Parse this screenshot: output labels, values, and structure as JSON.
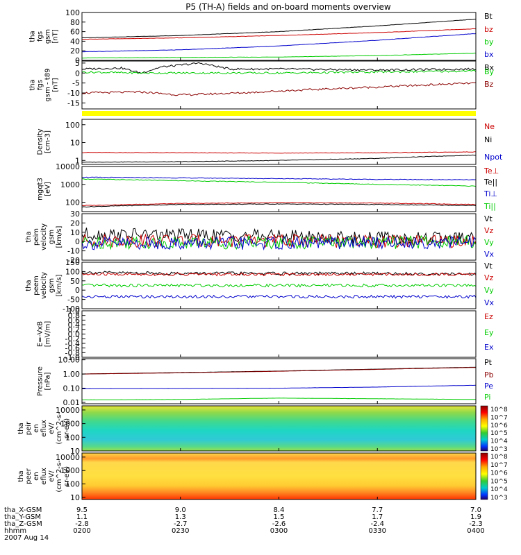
{
  "title": "P5 (TH-A) fields and on-board moments overview",
  "colors": {
    "black": "#000000",
    "red": "#cc0000",
    "darkred": "#8b0000",
    "green": "#00cc00",
    "blue": "#0000cc",
    "yellow": "#ffff00"
  },
  "chart_data": {
    "type": "line",
    "time_labels": [
      "0200",
      "0230",
      "0300",
      "0330",
      "0400"
    ],
    "time_hours": [
      2.0,
      2.5,
      3.0,
      3.5,
      4.0
    ],
    "ephemeris": [
      {
        "name": "tha_X-GSM",
        "values": [
          "9.5",
          "9.0",
          "8.4",
          "7.7",
          "7.0"
        ]
      },
      {
        "name": "tha_Y-GSM",
        "values": [
          "1.1",
          "1.3",
          "1.5",
          "1.7",
          "1.9"
        ]
      },
      {
        "name": "tha_Z-GSM",
        "values": [
          "-2.8",
          "-2.7",
          "-2.6",
          "-2.4",
          "-2.3"
        ]
      },
      {
        "name": "hhmm",
        "values": [
          "0200",
          "0230",
          "0300",
          "0330",
          "0400"
        ]
      }
    ],
    "date": "2007 Aug 14",
    "panels": [
      {
        "key": "fgs_gsm",
        "ylabel": [
          "tha",
          "fgs",
          "gsm",
          "[nT]"
        ],
        "scale": "linear",
        "ylim": [
          0,
          100
        ],
        "ticks": [
          "0",
          "20",
          "40",
          "60",
          "80",
          "100"
        ],
        "legend": [
          "Bt",
          "bz",
          "by",
          "bx"
        ],
        "series": [
          {
            "name": "Bt",
            "color": "#000000",
            "x": [
              2.0,
              2.5,
              3.0,
              3.5,
              4.0
            ],
            "y": [
              47,
              52,
              60,
              72,
              86
            ]
          },
          {
            "name": "bz",
            "color": "#cc0000",
            "x": [
              2.0,
              2.5,
              3.0,
              3.5,
              4.0
            ],
            "y": [
              44,
              47,
              52,
              58,
              66
            ]
          },
          {
            "name": "by",
            "color": "#00cc00",
            "x": [
              2.0,
              2.5,
              3.0,
              3.5,
              4.0
            ],
            "y": [
              5,
              6,
              7,
              10,
              15
            ]
          },
          {
            "name": "bx",
            "color": "#0000cc",
            "x": [
              2.0,
              2.5,
              3.0,
              3.5,
              4.0
            ],
            "y": [
              18,
              22,
              30,
              42,
              56
            ]
          }
        ]
      },
      {
        "key": "fgs_t89",
        "ylabel": [
          "tha",
          "fgs",
          "gsm - t89",
          "[nT]"
        ],
        "scale": "linear",
        "ylim": [
          -18,
          6
        ],
        "ticks": [
          "5",
          "0",
          "-5",
          "-10",
          "-15"
        ],
        "tick_values": [
          5,
          0,
          -5,
          -10,
          -15
        ],
        "legend": [
          "Bx",
          "By",
          "Bz"
        ],
        "series": [
          {
            "name": "Bx",
            "color": "#000000",
            "x": [
              2.0,
              2.2,
              2.3,
              2.4,
              2.6,
              2.75,
              3.0,
              3.5,
              4.0
            ],
            "y": [
              2,
              2.5,
              0,
              3,
              5,
              2,
              2,
              1.5,
              2
            ]
          },
          {
            "name": "By",
            "color": "#00cc00",
            "x": [
              2.0,
              2.3,
              2.5,
              3.0,
              3.5,
              4.0
            ],
            "y": [
              0.5,
              0,
              0,
              0,
              0.5,
              1
            ]
          },
          {
            "name": "Bz",
            "color": "#8b0000",
            "x": [
              2.0,
              2.3,
              2.5,
              2.8,
              3.0,
              3.5,
              4.0
            ],
            "y": [
              -10,
              -9.5,
              -11,
              -10,
              -9,
              -7,
              -5
            ]
          }
        ]
      },
      {
        "key": "density",
        "ylabel": [
          "Density",
          "[cm-3]"
        ],
        "scale": "log",
        "ylim": [
          0.6,
          200
        ],
        "ticks": [
          "1",
          "10",
          "100"
        ],
        "tick_values": [
          1,
          10,
          100
        ],
        "legend": [
          "Ne",
          "Ni",
          "Npot"
        ],
        "series": [
          {
            "name": "Ne",
            "color": "#cc0000",
            "x": [
              2.0,
              2.5,
              3.0,
              3.5,
              4.0
            ],
            "y": [
              2.8,
              2.7,
              2.6,
              2.7,
              3.0
            ]
          },
          {
            "name": "Ni",
            "color": "#000000",
            "x": [
              2.0,
              2.5,
              3.0,
              3.5,
              4.0
            ],
            "y": [
              0.8,
              0.85,
              1.0,
              1.3,
              2.0
            ]
          }
        ]
      },
      {
        "key": "mgqt3",
        "ylabel": [
          "mgqt3",
          "[eV]"
        ],
        "scale": "log",
        "ylim": [
          30,
          10000
        ],
        "ticks": [
          "100",
          "1000",
          "10000"
        ],
        "tick_values": [
          100,
          1000,
          10000
        ],
        "legend": [
          "Te⊥",
          "Te||",
          "Ti⊥",
          "Ti||"
        ],
        "series": [
          {
            "name": "Te⊥",
            "color": "#cc0000",
            "x": [
              2.0,
              2.5,
              3.0,
              3.5,
              4.0
            ],
            "y": [
              65,
              85,
              95,
              90,
              75
            ]
          },
          {
            "name": "Te||",
            "color": "#000000",
            "x": [
              2.0,
              2.5,
              3.0,
              3.5,
              4.0
            ],
            "y": [
              55,
              75,
              80,
              75,
              65
            ]
          },
          {
            "name": "Ti⊥",
            "color": "#0000cc",
            "x": [
              2.0,
              2.5,
              3.0,
              3.5,
              4.0
            ],
            "y": [
              2500,
              2300,
              2100,
              1900,
              1800
            ]
          },
          {
            "name": "Ti||",
            "color": "#00cc00",
            "x": [
              2.0,
              2.5,
              3.0,
              3.5,
              4.0
            ],
            "y": [
              2000,
              1600,
              1300,
              1000,
              800
            ]
          }
        ]
      },
      {
        "key": "peim",
        "ylabel": [
          "tha",
          "peim",
          "velocity",
          "gsm",
          "[km/s]"
        ],
        "scale": "linear",
        "ylim": [
          -20,
          30
        ],
        "ticks": [
          "30",
          "20",
          "10",
          "0",
          "-10",
          "-20"
        ],
        "tick_values": [
          30,
          20,
          10,
          0,
          -10,
          -20
        ],
        "legend": [
          "Vt",
          "Vz",
          "Vy",
          "Vx"
        ],
        "series": [
          {
            "name": "Vt",
            "color": "#000000",
            "x": [
              2.0,
              2.5,
              3.0,
              3.5,
              4.0
            ],
            "y": [
              8,
              7,
              6,
              4,
              3
            ]
          },
          {
            "name": "Vz",
            "color": "#cc0000",
            "x": [
              2.0,
              2.5,
              3.0,
              3.5,
              4.0
            ],
            "y": [
              1,
              1,
              1,
              0,
              0
            ]
          },
          {
            "name": "Vy",
            "color": "#00cc00",
            "x": [
              2.0,
              2.5,
              3.0,
              3.5,
              4.0
            ],
            "y": [
              -1,
              -1,
              -1,
              -1,
              0
            ]
          },
          {
            "name": "Vx",
            "color": "#0000cc",
            "x": [
              2.0,
              2.5,
              3.0,
              3.5,
              4.0
            ],
            "y": [
              -2,
              -2,
              -2,
              -1,
              -1
            ]
          }
        ]
      },
      {
        "key": "peem",
        "ylabel": [
          "tha",
          "peem",
          "velocity",
          "gsm",
          "[km/s]"
        ],
        "scale": "linear",
        "ylim": [
          -100,
          150
        ],
        "ticks": [
          "150",
          "100",
          "50",
          "0",
          "-50",
          "-100"
        ],
        "tick_values": [
          150,
          100,
          50,
          0,
          -50,
          -100
        ],
        "legend": [
          "Vt",
          "Vz",
          "Vy",
          "Vx"
        ],
        "series": [
          {
            "name": "Vt",
            "color": "#000000",
            "x": [
              2.0,
              2.5,
              3.0,
              3.5,
              4.0
            ],
            "y": [
              95,
              90,
              90,
              90,
              85
            ]
          },
          {
            "name": "Vz",
            "color": "#cc0000",
            "x": [
              2.0,
              2.5,
              3.0,
              3.5,
              4.0
            ],
            "y": [
              85,
              85,
              85,
              85,
              85
            ]
          },
          {
            "name": "Vy",
            "color": "#00cc00",
            "x": [
              2.0,
              2.5,
              3.0,
              3.5,
              4.0
            ],
            "y": [
              25,
              25,
              25,
              25,
              25
            ]
          },
          {
            "name": "Vx",
            "color": "#0000cc",
            "x": [
              2.0,
              2.5,
              3.0,
              3.5,
              4.0
            ],
            "y": [
              -35,
              -35,
              -35,
              -35,
              -35
            ]
          }
        ]
      },
      {
        "key": "exb",
        "ylabel": [
          "E=-VxB",
          "[mV/m]"
        ],
        "scale": "linear",
        "ylim": [
          -1,
          1
        ],
        "ticks": [
          "1.0",
          "0.8",
          "0.6",
          "0.4",
          "0.2",
          "0.0",
          "-0.2",
          "-0.4",
          "-0.6",
          "-0.8",
          "-1.0"
        ],
        "tick_values": [
          1.0,
          0.8,
          0.6,
          0.4,
          0.2,
          0.0,
          -0.2,
          -0.4,
          -0.6,
          -0.8,
          -1.0
        ],
        "legend": [
          "Ez",
          "Ey",
          "Ex"
        ],
        "series": []
      },
      {
        "key": "pressure",
        "ylabel": [
          "Pressure",
          "[nPa]"
        ],
        "scale": "log",
        "ylim": [
          0.008,
          12
        ],
        "ticks": [
          "10.00",
          "1.00",
          "0.10",
          "0.01"
        ],
        "tick_values": [
          10,
          1,
          0.1,
          0.01
        ],
        "legend": [
          "Pt",
          "Pb",
          "Pe",
          "Pi"
        ],
        "series": [
          {
            "name": "Pt",
            "color": "#000000",
            "x": [
              2.0,
              2.5,
              3.0,
              3.5,
              4.0
            ],
            "y": [
              1.0,
              1.25,
              1.6,
              2.2,
              3.0
            ]
          },
          {
            "name": "Pb",
            "color": "#8b0000",
            "x": [
              2.0,
              2.5,
              3.0,
              3.5,
              4.0
            ],
            "y": [
              1.0,
              1.2,
              1.55,
              2.1,
              2.9
            ]
          },
          {
            "name": "Pe",
            "color": "#0000cc",
            "x": [
              2.0,
              2.5,
              3.0,
              3.5,
              4.0
            ],
            "y": [
              0.09,
              0.095,
              0.1,
              0.12,
              0.16
            ]
          },
          {
            "name": "Pi",
            "color": "#00cc00",
            "x": [
              2.0,
              2.5,
              3.0,
              3.5,
              4.0
            ],
            "y": [
              0.015,
              0.016,
              0.02,
              0.018,
              0.016
            ]
          }
        ]
      },
      {
        "key": "peir",
        "ylabel": [
          "tha",
          "peir",
          "en",
          "eflux",
          "eV/",
          "(cm^2-s-",
          "sr-eV)"
        ],
        "scale": "log",
        "type": "heatmap",
        "ylim": [
          10,
          20000
        ],
        "ticks": [
          "10000",
          "1000",
          "100",
          "10"
        ],
        "tick_values": [
          10000,
          1000,
          100,
          10
        ],
        "colorbar_ticks": [
          "10^8",
          "10^7",
          "10^6",
          "10^5",
          "10^4",
          "10^3"
        ]
      },
      {
        "key": "peer",
        "ylabel": [
          "tha",
          "peer",
          "en",
          "eflux",
          "eV/",
          "(cm^2-s-",
          "sr-eV)"
        ],
        "scale": "log",
        "type": "heatmap",
        "ylim": [
          7,
          20000
        ],
        "ticks": [
          "10000",
          "1000",
          "100",
          "10"
        ],
        "tick_values": [
          10000,
          1000,
          100,
          10
        ],
        "colorbar_ticks": [
          "10^8",
          "10^7",
          "10^6",
          "10^5",
          "10^4",
          "10^3"
        ]
      }
    ]
  }
}
